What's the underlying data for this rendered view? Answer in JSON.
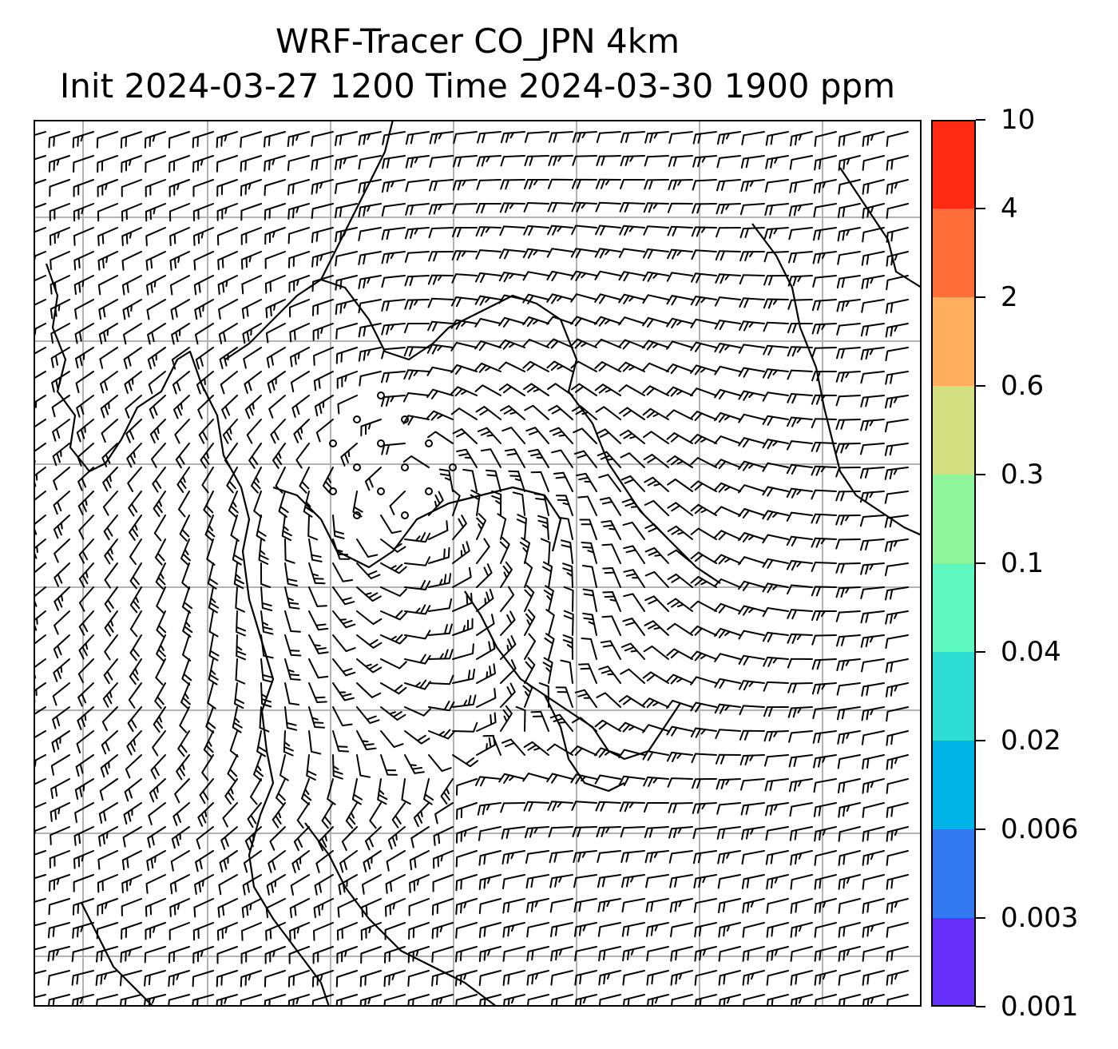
{
  "title": {
    "line1": "WRF-Tracer CO_JPN 4km",
    "line2": "Init 2024-03-27 1200 Time 2024-03-30 1900 ppm"
  },
  "colorbar": {
    "levels": [
      "10",
      "4",
      "2",
      "0.6",
      "0.3",
      "0.1",
      "0.04",
      "0.02",
      "0.006",
      "0.003",
      "0.001"
    ],
    "colors_top_to_bottom": [
      "#ff2a12",
      "#ff6e39",
      "#ffae5e",
      "#d2e082",
      "#8ef59c",
      "#5ef7c0",
      "#2ddcd3",
      "#00b4e8",
      "#3278f0",
      "#6630fa"
    ]
  },
  "map": {
    "gridlines": true,
    "gridline_color": "#b3b3b3",
    "barb_color": "#000000",
    "coastline_color": "#000000",
    "calm_wind_symbol": "circle"
  }
}
